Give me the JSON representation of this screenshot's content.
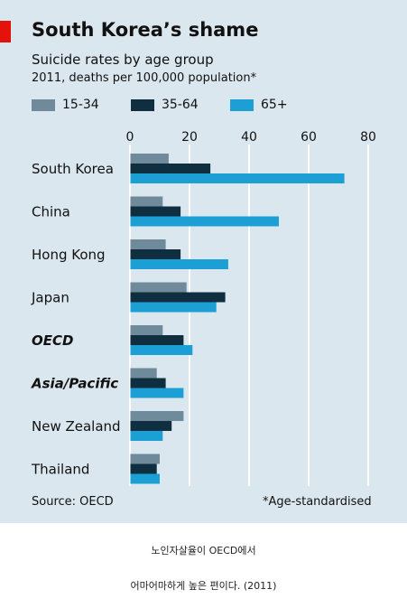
{
  "header": {
    "title": "South Korea’s shame",
    "subtitle": "Suicide rates by age group",
    "subtitle2": "2011, deaths per 100,000 population*"
  },
  "footer": {
    "source": "Source: OECD",
    "footnote": "*Age-standardised"
  },
  "caption": {
    "line1": "노인자살율이 OECD에서",
    "line2": "어마어마하게 높은 편이다. (2011)"
  },
  "colors": {
    "panel_background": "#dbe7ee",
    "accent_red": "#e3120b",
    "series_15_34": "#6e8a9b",
    "series_35_64": "#0f2e40",
    "series_65_plus": "#1c9fd4"
  },
  "chart_data": {
    "type": "bar",
    "orientation": "horizontal",
    "categories": [
      "South Korea",
      "China",
      "Hong Kong",
      "Japan",
      "OECD",
      "Asia/Pacific",
      "New Zealand",
      "Thailand"
    ],
    "emphasized_categories": [
      "OECD",
      "Asia/Pacific"
    ],
    "series": [
      {
        "name": "15-34",
        "color": "#6e8a9b",
        "values": [
          13,
          11,
          12,
          19,
          11,
          9,
          18,
          10
        ]
      },
      {
        "name": "35-64",
        "color": "#0f2e40",
        "values": [
          27,
          17,
          17,
          32,
          18,
          12,
          14,
          9
        ]
      },
      {
        "name": "65+",
        "color": "#1c9fd4",
        "values": [
          72,
          50,
          33,
          29,
          21,
          18,
          11,
          10
        ]
      }
    ],
    "x_ticks": [
      0,
      20,
      40,
      60,
      80
    ],
    "xlim": [
      0,
      80
    ],
    "grid": true,
    "legend_position": "top"
  }
}
